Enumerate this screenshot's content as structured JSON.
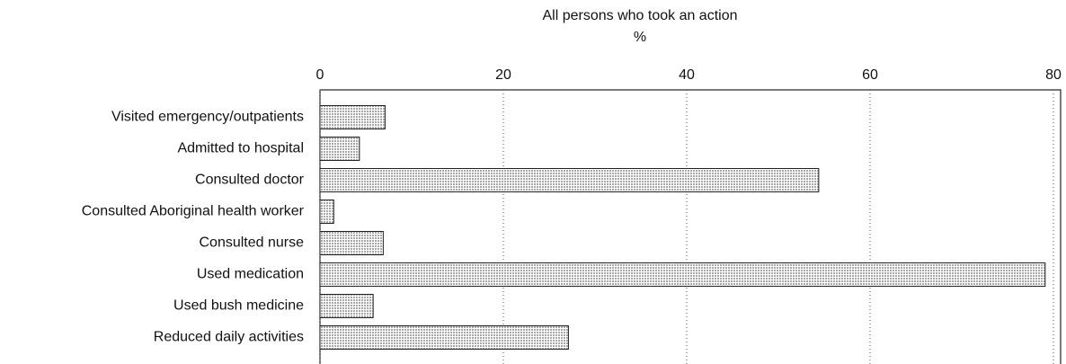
{
  "chart_data": {
    "type": "bar",
    "orientation": "horizontal",
    "title": "All persons who took an action",
    "xlabel": "%",
    "categories": [
      "Visited emergency/outpatients",
      "Admitted to hospital",
      "Consulted doctor",
      "Consulted Aboriginal health worker",
      "Consulted nurse",
      "Used medication",
      "Used bush medicine",
      "Reduced daily activities"
    ],
    "values": [
      7.1,
      4.3,
      54.4,
      1.5,
      6.9,
      79.1,
      5.8,
      27.1
    ],
    "color": "#a8a8a8",
    "xlim": [
      0,
      80
    ],
    "xticks": [
      0,
      20,
      40,
      60,
      80
    ],
    "grid": true
  }
}
